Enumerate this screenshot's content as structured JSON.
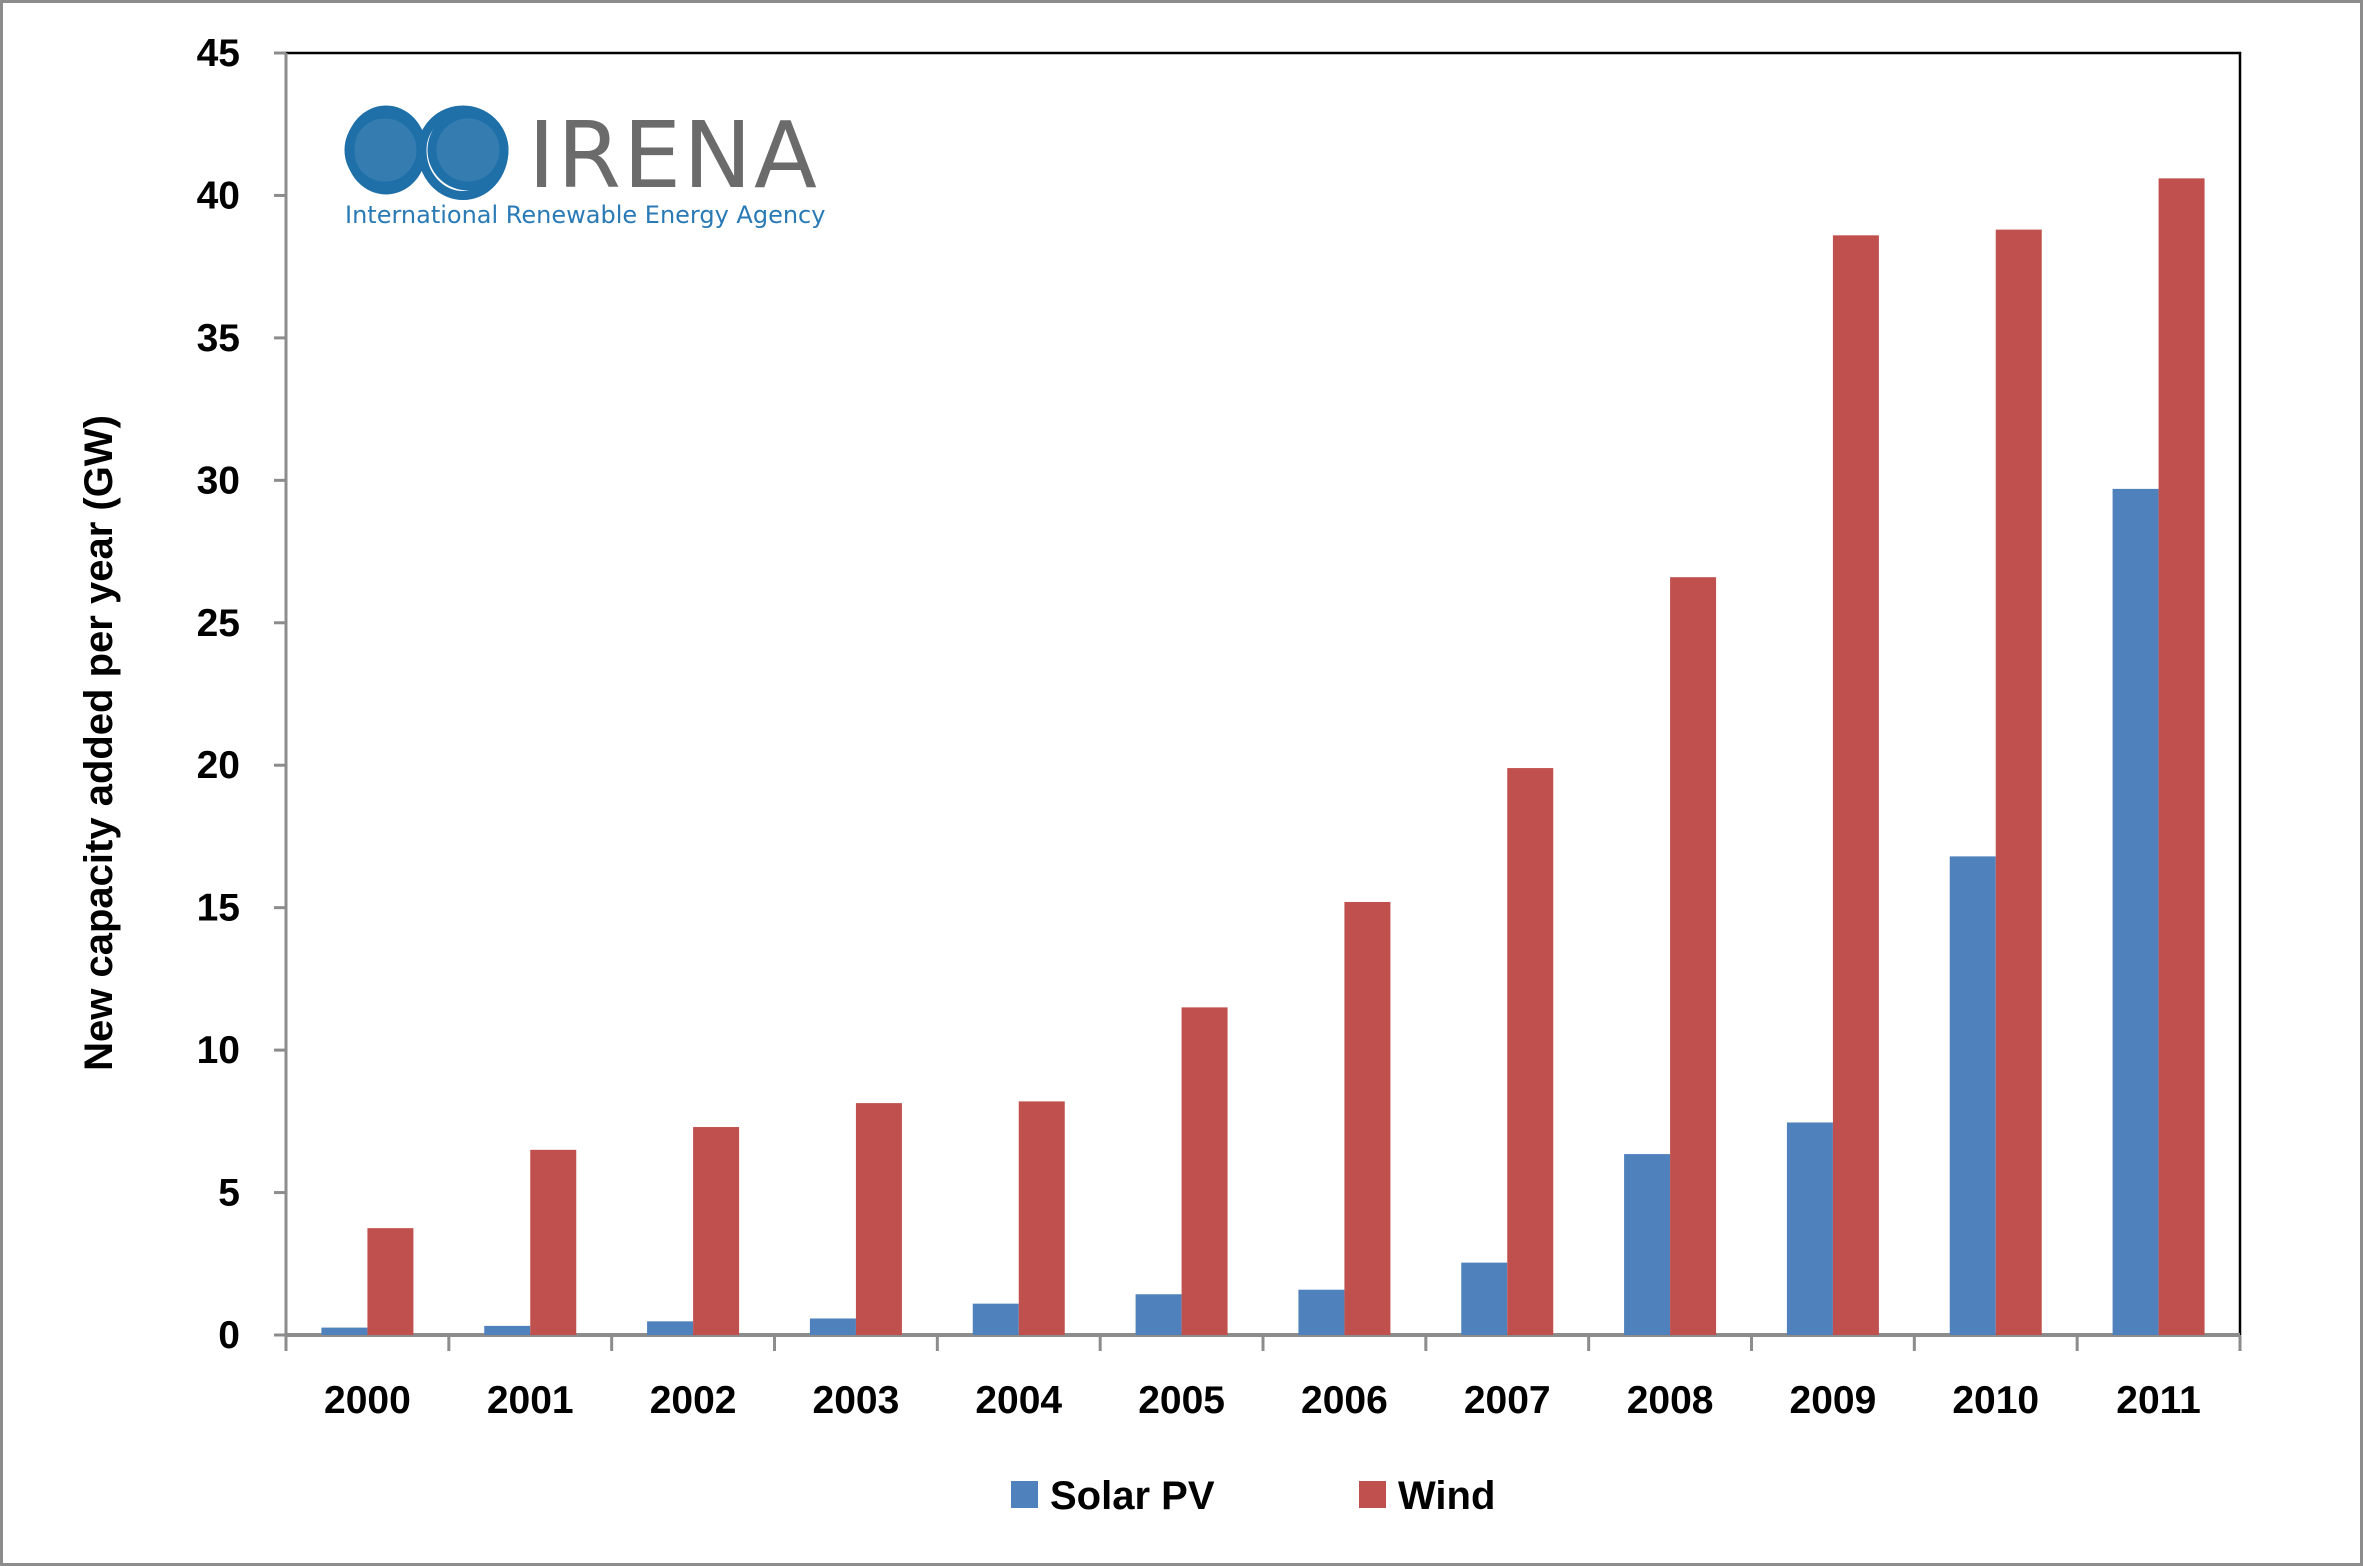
{
  "chart_data": {
    "type": "bar",
    "title": "",
    "xlabel": "",
    "ylabel": "New capacity added per year (GW)",
    "ylim": [
      0,
      45
    ],
    "yticks": [
      0,
      5,
      10,
      15,
      20,
      25,
      30,
      35,
      40,
      45
    ],
    "grid": false,
    "legend_position": "bottom",
    "categories": [
      "2000",
      "2001",
      "2002",
      "2003",
      "2004",
      "2005",
      "2006",
      "2007",
      "2008",
      "2009",
      "2010",
      "2011"
    ],
    "series": [
      {
        "name": "Solar PV",
        "color": "#4f81bd",
        "values": [
          0.26,
          0.32,
          0.48,
          0.58,
          1.1,
          1.43,
          1.59,
          2.54,
          6.35,
          7.46,
          16.8,
          29.7
        ]
      },
      {
        "name": "Wind",
        "color": "#c0504d",
        "values": [
          3.75,
          6.5,
          7.3,
          8.14,
          8.2,
          11.5,
          15.2,
          19.9,
          26.6,
          38.6,
          38.8,
          40.6
        ]
      }
    ]
  },
  "logo": {
    "name": "IRENA",
    "subtitle": "International Renewable Energy Agency",
    "color": "#1f6fa8"
  }
}
